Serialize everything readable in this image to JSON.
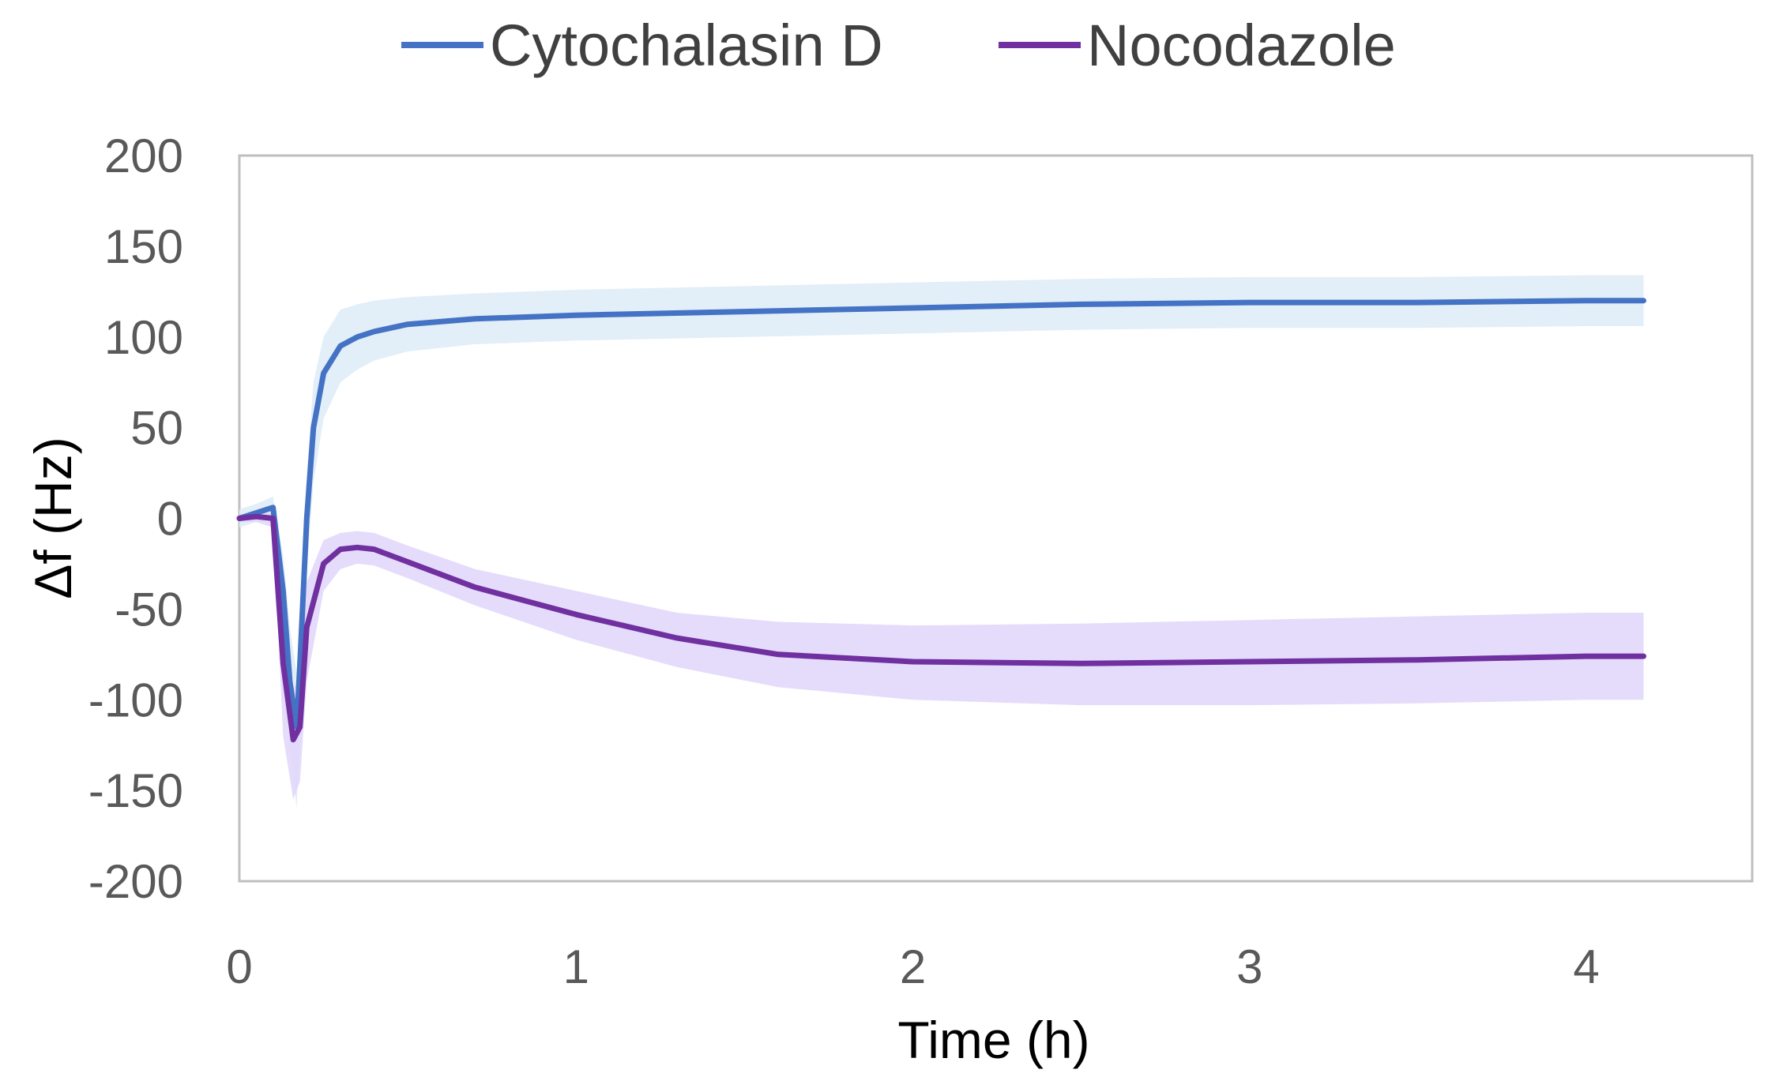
{
  "chart_data": {
    "type": "line",
    "title": "",
    "xlabel": "Time (h)",
    "ylabel": "Δf (Hz)",
    "xlim": [
      0,
      4.5
    ],
    "ylim": [
      -200,
      200
    ],
    "xticks": [
      0,
      1,
      2,
      3,
      4
    ],
    "yticks": [
      200,
      150,
      100,
      50,
      0,
      -50,
      -100,
      -150,
      -200
    ],
    "x_tick_labels": [
      "0",
      "1",
      "2",
      "3",
      "4"
    ],
    "y_tick_labels": [
      "200",
      "150",
      "100",
      "50",
      "0",
      "-50",
      "-100",
      "-150",
      "-200"
    ],
    "grid": false,
    "legend_position": "top-center",
    "series": [
      {
        "name": "Cytochalasin D",
        "color": "#4472C4",
        "band_color": "#DDEBF7",
        "x": [
          0,
          0.05,
          0.1,
          0.13,
          0.15,
          0.17,
          0.18,
          0.2,
          0.22,
          0.25,
          0.3,
          0.35,
          0.4,
          0.5,
          0.7,
          1.0,
          1.5,
          2.0,
          2.5,
          3.0,
          3.5,
          4.0,
          4.17
        ],
        "y": [
          0,
          3,
          6,
          -40,
          -90,
          -115,
          -80,
          0,
          50,
          80,
          95,
          100,
          103,
          107,
          110,
          112,
          114,
          116,
          118,
          119,
          119,
          120,
          120
        ],
        "lower": [
          -5,
          -2,
          0,
          -60,
          -125,
          -160,
          -120,
          -30,
          20,
          55,
          75,
          82,
          87,
          92,
          96,
          98,
          100,
          102,
          104,
          105,
          105,
          106,
          106
        ],
        "upper": [
          5,
          8,
          12,
          -20,
          -60,
          -85,
          -50,
          25,
          75,
          100,
          115,
          118,
          120,
          122,
          124,
          126,
          128,
          130,
          132,
          133,
          133,
          134,
          134
        ]
      },
      {
        "name": "Nocodazole",
        "color": "#7030A0",
        "band_color": "#E0D6FA",
        "x": [
          0,
          0.05,
          0.1,
          0.13,
          0.16,
          0.18,
          0.2,
          0.25,
          0.3,
          0.35,
          0.4,
          0.5,
          0.7,
          1.0,
          1.3,
          1.6,
          2.0,
          2.5,
          3.0,
          3.5,
          4.0,
          4.17
        ],
        "y": [
          0,
          1,
          0,
          -80,
          -122,
          -115,
          -60,
          -25,
          -17,
          -16,
          -17,
          -24,
          -38,
          -53,
          -66,
          -75,
          -79,
          -80,
          -79,
          -78,
          -76,
          -76
        ],
        "lower": [
          -2,
          -2,
          -5,
          -120,
          -155,
          -145,
          -90,
          -40,
          -28,
          -25,
          -26,
          -33,
          -48,
          -67,
          -82,
          -93,
          -100,
          -103,
          -103,
          -102,
          -100,
          -100
        ],
        "upper": [
          2,
          3,
          3,
          -50,
          -95,
          -85,
          -35,
          -12,
          -8,
          -7,
          -8,
          -15,
          -28,
          -40,
          -52,
          -57,
          -59,
          -58,
          -56,
          -54,
          -52,
          -52
        ]
      }
    ]
  }
}
